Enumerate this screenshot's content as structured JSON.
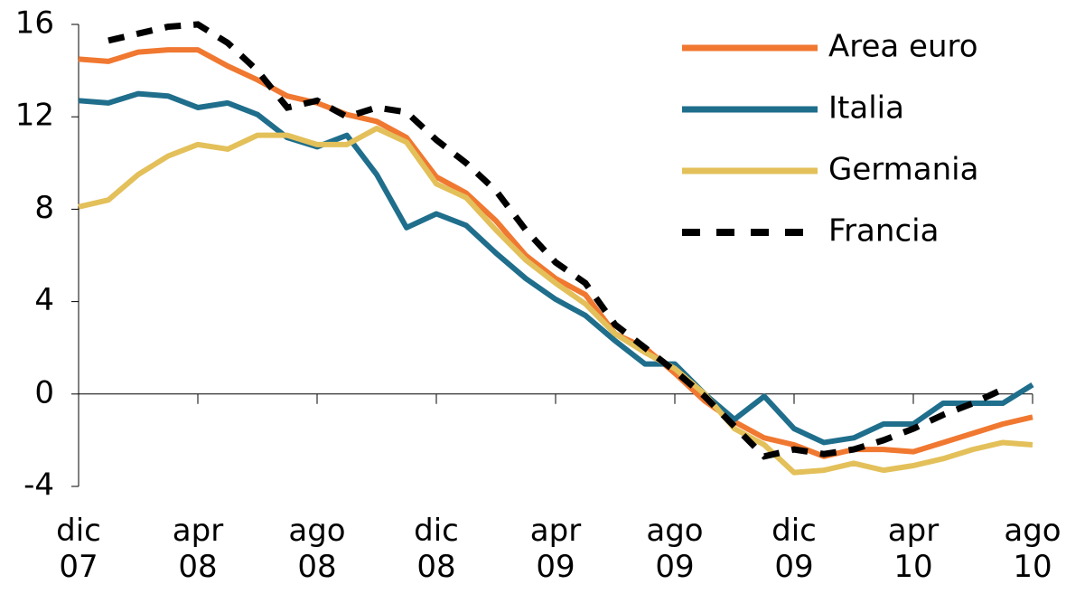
{
  "chart_data": {
    "type": "line",
    "categories": [
      "dic 07",
      null,
      null,
      null,
      "apr 08",
      null,
      null,
      null,
      "ago 08",
      null,
      null,
      null,
      "dic 08",
      null,
      null,
      null,
      "apr 09",
      null,
      null,
      null,
      "ago 09",
      null,
      null,
      null,
      "dic 09",
      null,
      null,
      null,
      "apr 10",
      null,
      null,
      null,
      "ago 10"
    ],
    "series": [
      {
        "name": "Area euro",
        "color": "#f07830",
        "dashed": false,
        "values": [
          14.5,
          14.4,
          14.8,
          14.9,
          14.9,
          14.2,
          13.6,
          12.9,
          12.6,
          12.1,
          11.8,
          11.1,
          9.4,
          8.7,
          7.5,
          6.0,
          5.0,
          4.3,
          2.6,
          2.0,
          0.9,
          -0.3,
          -1.2,
          -1.9,
          -2.2,
          -2.7,
          -2.4,
          -2.4,
          -2.5,
          -2.1,
          -1.7,
          -1.3,
          -1.0
        ]
      },
      {
        "name": "Italia",
        "color": "#1f6e8c",
        "dashed": false,
        "values": [
          12.7,
          12.6,
          13.0,
          12.9,
          12.4,
          12.6,
          12.1,
          11.1,
          10.7,
          11.2,
          9.5,
          7.2,
          7.8,
          7.3,
          6.1,
          5.0,
          4.1,
          3.4,
          2.3,
          1.3,
          1.3,
          0,
          -1.1,
          -0.1,
          -1.5,
          -2.1,
          -1.9,
          -1.3,
          -1.3,
          -0.4,
          -0.4,
          -0.4,
          0.4
        ]
      },
      {
        "name": "Germania",
        "color": "#e3c05a",
        "dashed": false,
        "values": [
          8.1,
          8.4,
          9.5,
          10.3,
          10.8,
          10.6,
          11.2,
          11.2,
          10.8,
          10.8,
          11.5,
          10.9,
          9.1,
          8.5,
          7.1,
          5.8,
          4.8,
          3.9,
          2.6,
          1.8,
          1.1,
          0,
          -1.5,
          -2.2,
          -3.4,
          -3.3,
          -3.0,
          -3.3,
          -3.1,
          -2.8,
          -2.4,
          -2.1,
          -2.2
        ]
      },
      {
        "name": "Francia",
        "color": "#000000",
        "dashed": true,
        "values": [
          null,
          15.3,
          15.6,
          15.9,
          16.0,
          15.2,
          14.0,
          12.4,
          12.7,
          12.0,
          12.4,
          12.2,
          11.0,
          10.0,
          8.8,
          7.1,
          5.7,
          4.8,
          3.0,
          2.0,
          1.0,
          -0.1,
          -1.4,
          -2.7,
          -2.4,
          -2.6,
          -2.4,
          -2.0,
          -1.5,
          -0.9,
          -0.4,
          0.2,
          null
        ]
      }
    ],
    "ylim": [
      -4,
      16
    ],
    "yticks": [
      -4,
      0,
      4,
      8,
      12,
      16
    ],
    "legend": "top-right"
  }
}
